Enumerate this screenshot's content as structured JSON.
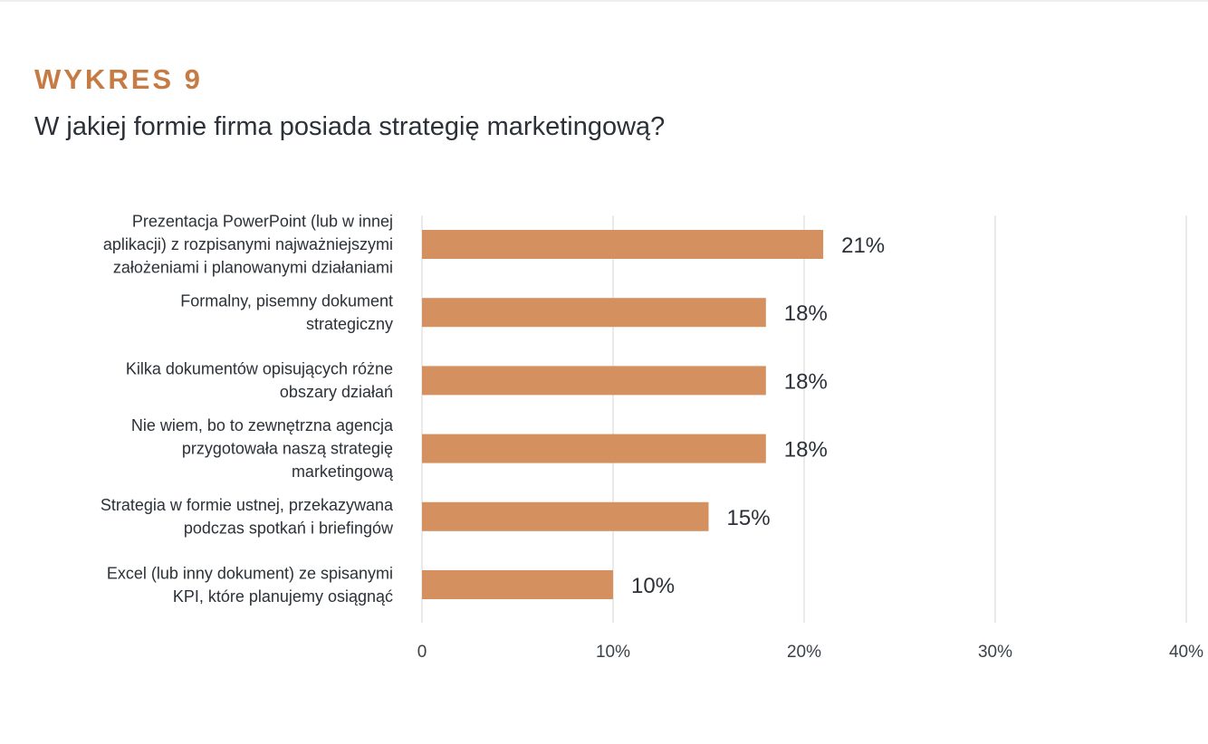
{
  "header": {
    "label": "WYKRES 9",
    "question": "W jakiej formie firma posiada strategię marketingową?"
  },
  "colors": {
    "accent": "#c77b44",
    "bar": "#d4905e",
    "text": "#2c3138",
    "grid": "#e3e3e3"
  },
  "chart_data": {
    "type": "bar",
    "orientation": "horizontal",
    "title": "W jakiej formie firma posiada strategię marketingową?",
    "categories": [
      [
        "Prezentacja PowerPoint (lub w innej",
        "aplikacji) z rozpisanymi najważniejszymi",
        "założeniami i planowanymi działaniami"
      ],
      [
        "Formalny, pisemny dokument",
        "strategiczny"
      ],
      [
        "Kilka dokumentów opisujących różne",
        "obszary działań"
      ],
      [
        "Nie wiem, bo to zewnętrzna agencja",
        "przygotowała naszą strategię",
        "marketingową"
      ],
      [
        "Strategia w formie ustnej, przekazywana",
        "podczas spotkań i briefingów"
      ],
      [
        "Excel (lub inny dokument) ze spisanymi",
        "KPI, które planujemy osiągnąć"
      ]
    ],
    "values": [
      21,
      18,
      18,
      18,
      15,
      10
    ],
    "value_labels": [
      "21%",
      "18%",
      "18%",
      "18%",
      "15%",
      "10%"
    ],
    "xlim": [
      0,
      40
    ],
    "xticks": [
      0,
      10,
      20,
      30,
      40
    ],
    "xtick_labels": [
      "0",
      "10%",
      "20%",
      "30%",
      "40%"
    ],
    "grid": true,
    "legend": "none"
  }
}
